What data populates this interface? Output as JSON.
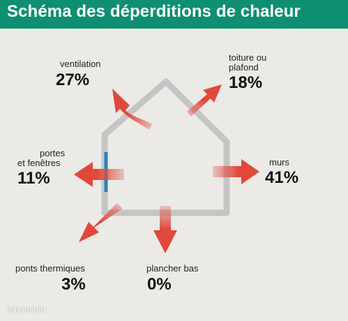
{
  "title": "Schéma des déperditions de chaleur",
  "items": {
    "ventilation": {
      "label": "ventilation",
      "value": "27%"
    },
    "toiture": {
      "label_line1": "toiture ou",
      "label_line2": "plafond",
      "value": "18%"
    },
    "portes": {
      "label_line1": "portes",
      "label_line2": "et fenêtres",
      "value": "11%"
    },
    "murs": {
      "label": "murs",
      "value": "41%"
    },
    "ponts": {
      "label": "ponts thermiques",
      "value": "3%"
    },
    "plancher": {
      "label": "plancher bas",
      "value": "0%"
    }
  },
  "watermark": "leboncoin",
  "colors": {
    "title_bar": "#0f8f72",
    "arrow": "#e0483b",
    "house_outline": "#c5c5c5",
    "window": "#2b7fc1",
    "background": "#ebeae6"
  }
}
